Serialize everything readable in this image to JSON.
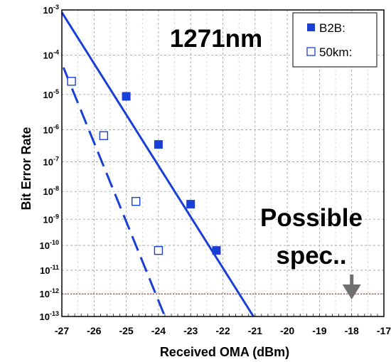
{
  "chart_data": {
    "type": "scatter",
    "title": "1271nm",
    "xlabel": "Received OMA (dBm)",
    "ylabel": "Bit Error Rate",
    "xlim": [
      -27,
      -17
    ],
    "x_ticks": [
      -27,
      -26,
      -25,
      -24,
      -23,
      -22,
      -21,
      -20,
      -19,
      -18,
      -17
    ],
    "x_tick_labels": [
      "-27",
      "-26",
      "-25",
      "-24",
      "-23",
      "-22",
      "-21",
      "-20",
      "-19",
      "-18",
      "-17"
    ],
    "y_scale": "inverse-erfc (Q-scale), log BER",
    "y_ticks": [
      -3,
      -4,
      -5,
      -6,
      -7,
      -8,
      -9,
      -10,
      -11,
      -12,
      -13
    ],
    "y_tick_labels": [
      {
        "base": "10",
        "exp": "-3"
      },
      {
        "base": "10",
        "exp": "-4"
      },
      {
        "base": "10",
        "exp": "-5"
      },
      {
        "base": "10",
        "exp": "-6"
      },
      {
        "base": "10",
        "exp": "-7"
      },
      {
        "base": "10",
        "exp": "-8"
      },
      {
        "base": "10",
        "exp": "-9"
      },
      {
        "base": "10",
        "exp": "-10"
      },
      {
        "base": "10",
        "exp": "-11"
      },
      {
        "base": "10",
        "exp": "-12"
      },
      {
        "base": "10",
        "exp": "-13"
      }
    ],
    "grid": true,
    "legend_position": "top-right",
    "series": [
      {
        "name": "B2B:",
        "marker": "filled-square",
        "line": "solid",
        "color": "#1a3fd6",
        "points": [
          {
            "x": -25.0,
            "y_exp": -5.05
          },
          {
            "x": -24.0,
            "y_exp": -6.45
          },
          {
            "x": -23.0,
            "y_exp": -8.45
          },
          {
            "x": -22.2,
            "y_exp": -10.2
          }
        ],
        "fit_line": [
          {
            "x": -27.0,
            "y_exp": -3.05
          },
          {
            "x": -21.05,
            "y_exp": -13.0
          }
        ]
      },
      {
        "name": "50km:",
        "marker": "open-square",
        "line": "dashed",
        "color": "#1a3fd6",
        "points": [
          {
            "x": -26.7,
            "y_exp": -4.65
          },
          {
            "x": -25.7,
            "y_exp": -6.18
          },
          {
            "x": -24.7,
            "y_exp": -8.35
          },
          {
            "x": -24.0,
            "y_exp": -10.2
          }
        ],
        "fit_line": [
          {
            "x": -26.95,
            "y_exp": -4.3
          },
          {
            "x": -23.8,
            "y_exp": -13.0
          }
        ]
      }
    ],
    "reference_line": {
      "y_exp": -12,
      "color": "#cc0000",
      "style": "dotted"
    },
    "annotation": {
      "line1": "Possible",
      "line2": "spec..",
      "arrow_x": -18,
      "arrow_color": "#707070"
    },
    "colors": {
      "series": "#1a3fd6",
      "reference": "#cc0000",
      "arrow": "#707070",
      "grid": "#9a9a9a"
    }
  }
}
